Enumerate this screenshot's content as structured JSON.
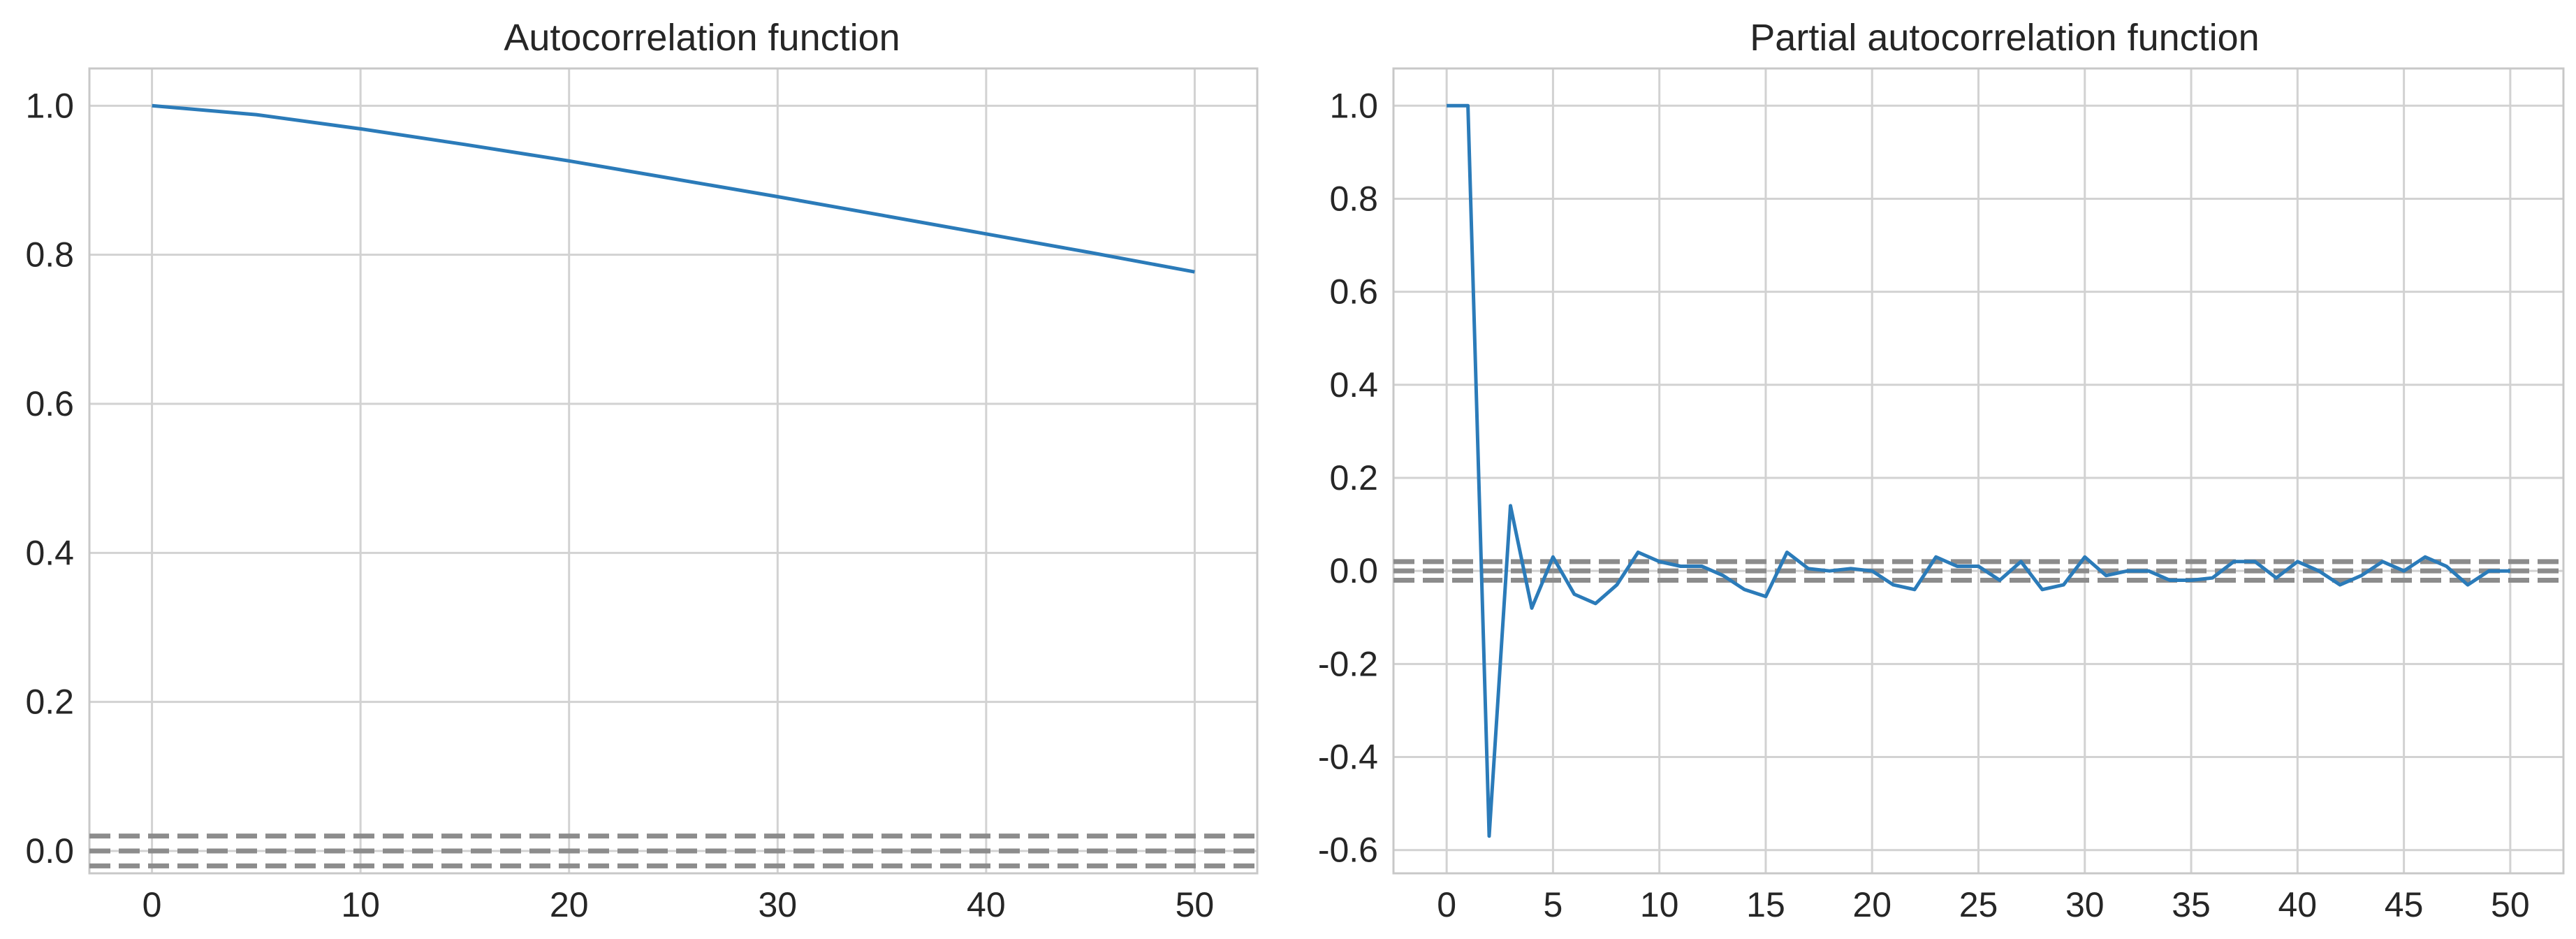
{
  "colors": {
    "line": "#2b7bb9",
    "confidence": "#8c8c8c",
    "grid": "#d2d2d2",
    "text": "#262626",
    "background": "#ffffff"
  },
  "chart_data": [
    {
      "type": "line",
      "title": "Autocorrelation function",
      "xlabel": "",
      "ylabel": "",
      "xlim": [
        -3,
        53
      ],
      "ylim": [
        -0.03,
        1.05
      ],
      "xticks": [
        0,
        10,
        20,
        30,
        40,
        50
      ],
      "xtick_labels": [
        "0",
        "10",
        "20",
        "30",
        "40",
        "50"
      ],
      "yticks": [
        0.0,
        0.2,
        0.4,
        0.6,
        0.8,
        1.0
      ],
      "ytick_labels": [
        "0.0",
        "0.2",
        "0.4",
        "0.6",
        "0.8",
        "1.0"
      ],
      "grid": true,
      "x": [
        0,
        5,
        10,
        15,
        20,
        25,
        30,
        35,
        40,
        45,
        50
      ],
      "values": [
        1.0,
        0.988,
        0.969,
        0.948,
        0.926,
        0.902,
        0.878,
        0.853,
        0.828,
        0.803,
        0.777
      ],
      "confidence_bands": [
        0.02,
        0.0,
        -0.02
      ]
    },
    {
      "type": "line",
      "title": "Partial autocorrelation function",
      "xlabel": "",
      "ylabel": "",
      "xlim": [
        -2.5,
        52.5
      ],
      "ylim": [
        -0.65,
        1.08
      ],
      "xticks": [
        0,
        5,
        10,
        15,
        20,
        25,
        30,
        35,
        40,
        45,
        50
      ],
      "xtick_labels": [
        "0",
        "5",
        "10",
        "15",
        "20",
        "25",
        "30",
        "35",
        "40",
        "45",
        "50"
      ],
      "yticks": [
        -0.6,
        -0.4,
        -0.2,
        0.0,
        0.2,
        0.4,
        0.6,
        0.8,
        1.0
      ],
      "ytick_labels": [
        "-0.6",
        "-0.4",
        "-0.2",
        "0.0",
        "0.2",
        "0.4",
        "0.6",
        "0.8",
        "1.0"
      ],
      "grid": true,
      "x": [
        0,
        1,
        2,
        3,
        4,
        5,
        6,
        7,
        8,
        9,
        10,
        11,
        12,
        13,
        14,
        15,
        16,
        17,
        18,
        19,
        20,
        21,
        22,
        23,
        24,
        25,
        26,
        27,
        28,
        29,
        30,
        31,
        32,
        33,
        34,
        35,
        36,
        37,
        38,
        39,
        40,
        41,
        42,
        43,
        44,
        45,
        46,
        47,
        48,
        49,
        50
      ],
      "values": [
        1.0,
        1.0,
        -0.57,
        0.14,
        -0.08,
        0.03,
        -0.05,
        -0.07,
        -0.03,
        0.04,
        0.02,
        0.01,
        0.01,
        -0.01,
        -0.04,
        -0.055,
        0.04,
        0.005,
        0.0,
        0.005,
        0.0,
        -0.03,
        -0.04,
        0.03,
        0.01,
        0.01,
        -0.02,
        0.02,
        -0.04,
        -0.03,
        0.03,
        -0.01,
        0.0,
        0.0,
        -0.02,
        -0.02,
        -0.015,
        0.02,
        0.02,
        -0.015,
        0.02,
        0.0,
        -0.03,
        -0.01,
        0.02,
        0.0,
        0.03,
        0.01,
        -0.03,
        0.0,
        0.0
      ],
      "confidence_bands": [
        0.02,
        0.0,
        -0.02
      ]
    }
  ]
}
